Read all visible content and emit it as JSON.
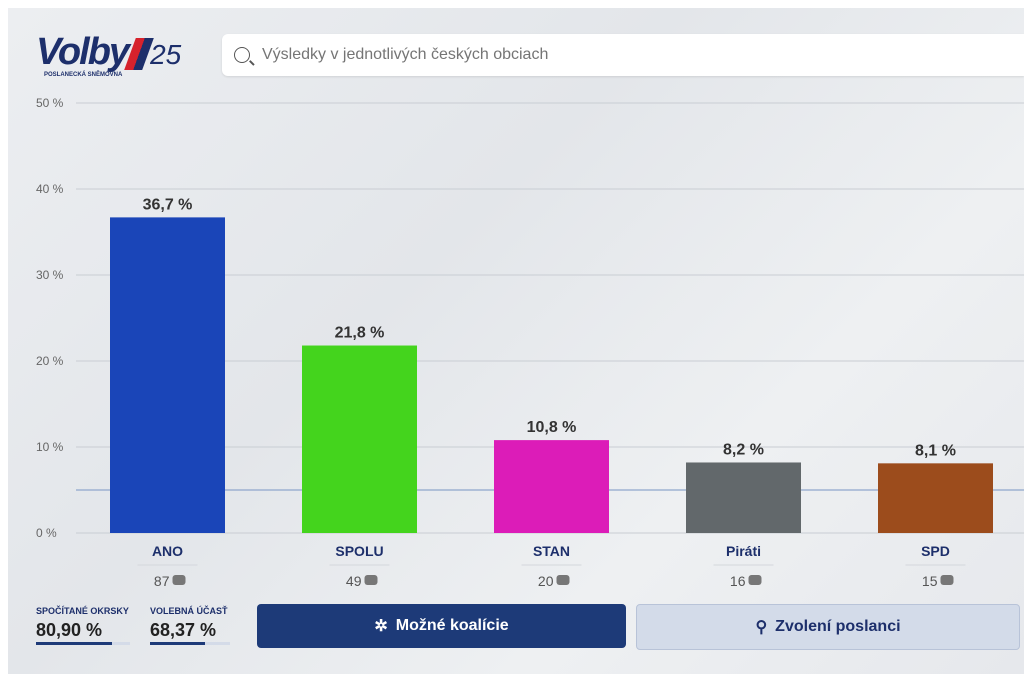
{
  "logo": {
    "text": "Volby",
    "number": "25",
    "subtitle": "POSLANECKÁ SNĚMOVNA"
  },
  "search": {
    "placeholder": "Výsledky v jednotlivých českých obciach",
    "icon": "search-icon"
  },
  "chart_data": {
    "type": "bar",
    "categories": [
      "ANO",
      "SPOLU",
      "STAN",
      "Piráti",
      "SPD"
    ],
    "values": [
      36.7,
      21.8,
      10.8,
      8.2,
      8.1
    ],
    "value_labels": [
      "36,7 %",
      "21,8 %",
      "10,8 %",
      "8,2 %",
      "8,1 %"
    ],
    "seats": [
      "87",
      "49",
      "20",
      "16",
      "15"
    ],
    "colors": [
      "#1a45b8",
      "#44d41d",
      "#dc1cb8",
      "#62686b",
      "#9c4c1c"
    ],
    "ylim": [
      0,
      50
    ],
    "yticks": [
      0,
      10,
      20,
      30,
      40,
      50
    ],
    "ytick_labels": [
      "0 %",
      "10 %",
      "20 %",
      "30 %",
      "40 %",
      "50 %"
    ],
    "threshold": 5,
    "grid": true
  },
  "stats": [
    {
      "label": "SPOČÍTANÉ OKRSKY",
      "value": "80,90 %",
      "fraction": 0.809
    },
    {
      "label": "VOLEBNÁ ÚČASŤ",
      "value": "68,37 %",
      "fraction": 0.6837
    }
  ],
  "buttons": {
    "coalitions": "Možné koalície",
    "mps": "Zvolení poslanci"
  }
}
